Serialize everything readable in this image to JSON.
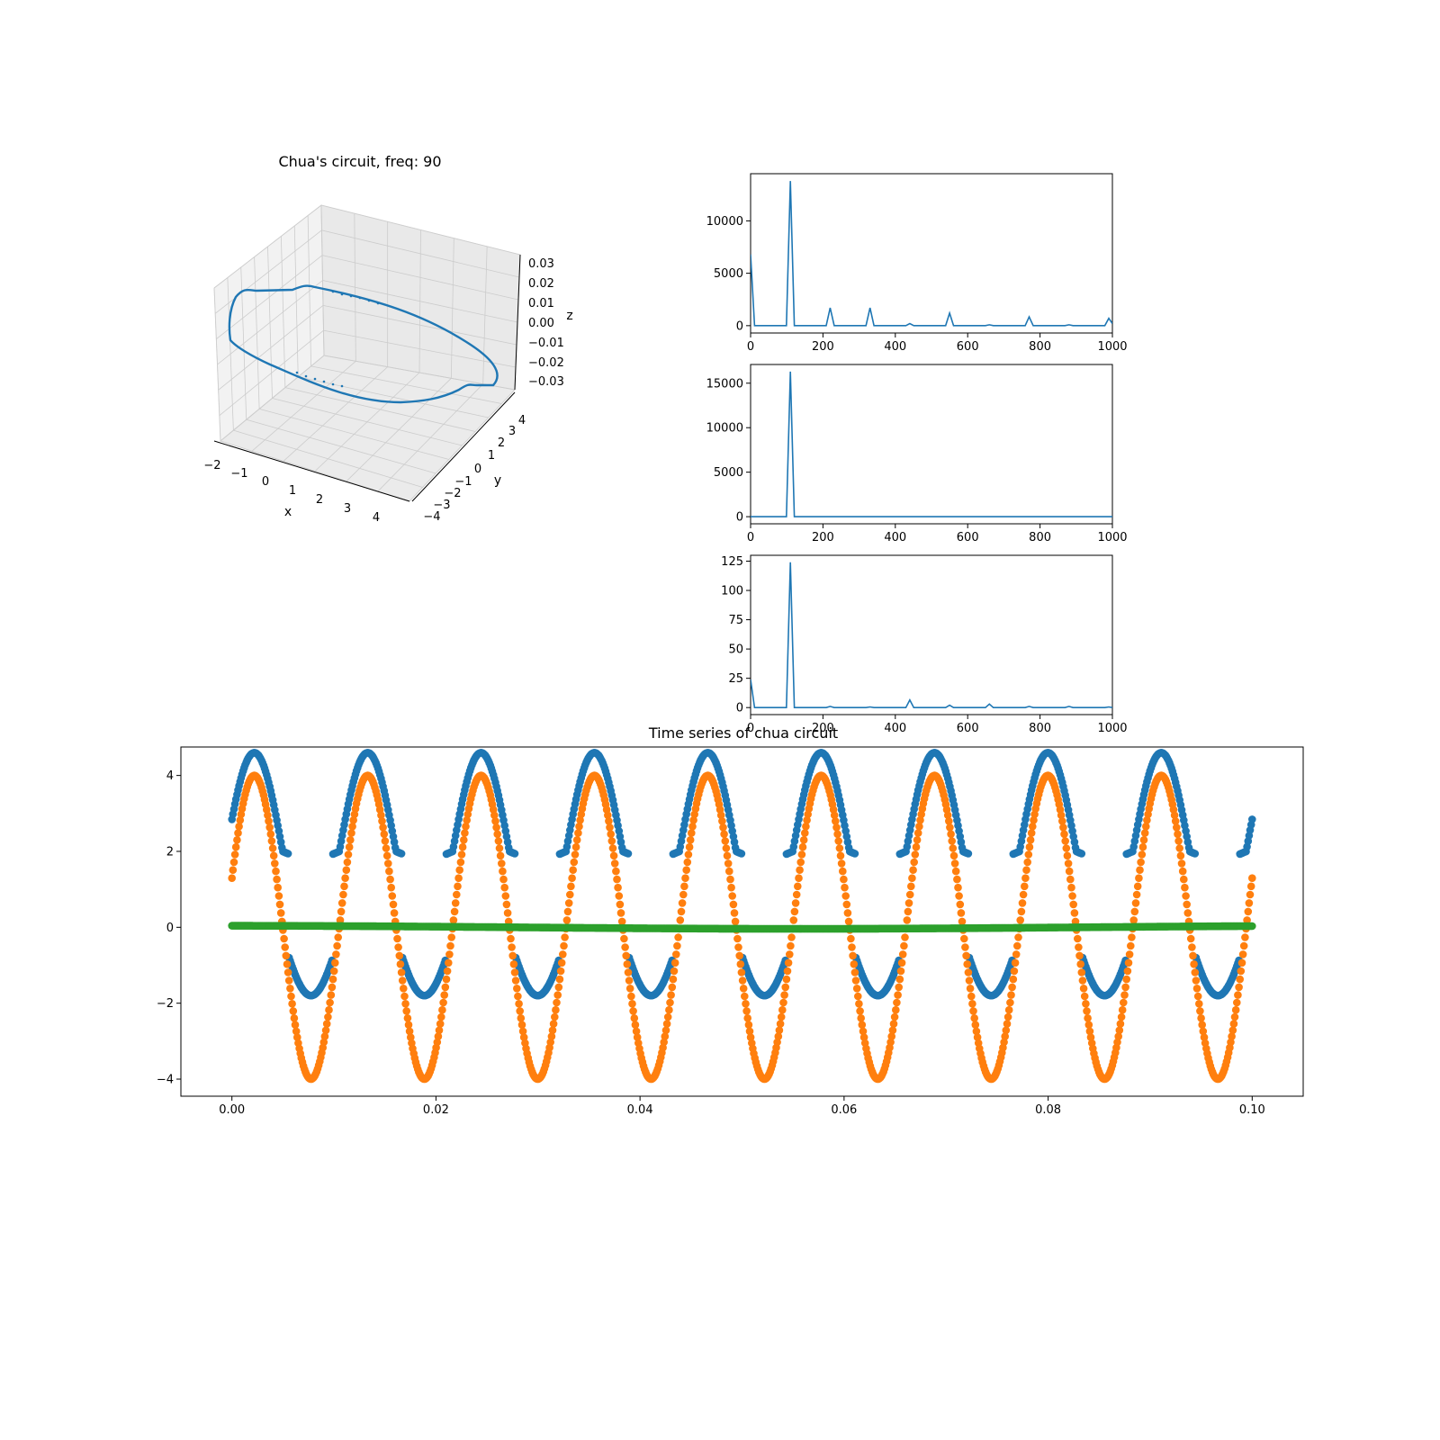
{
  "colors": {
    "c0": "#1f77b4",
    "c1": "#ff7f0e",
    "c2": "#2ca02c",
    "pane": "#f2f2f2",
    "grid": "#cccccc"
  },
  "chart_data": [
    {
      "id": "attractor3d",
      "type": "line3d",
      "title": "Chua's circuit, freq: 90",
      "xlabel": "x",
      "ylabel": "y",
      "zlabel": "z",
      "xlim": [
        -2,
        4.5
      ],
      "ylim": [
        -4.5,
        4.5
      ],
      "zlim": [
        -0.035,
        0.035
      ],
      "xticks": [
        "−2",
        "−1",
        "0",
        "1",
        "2",
        "3",
        "4"
      ],
      "yticks": [
        "−4",
        "−3",
        "−2",
        "−1",
        "0",
        "1",
        "2",
        "3",
        "4"
      ],
      "zticks": [
        "−0.03",
        "−0.02",
        "−0.01",
        "0.00",
        "0.01",
        "0.02",
        "0.03"
      ],
      "series": [
        {
          "color": "#1f77b4",
          "shape": "closed limit cycle, x approx −1.8 to 4.4, y approx −4 to 4, z approx −0.03 to 0.03"
        }
      ]
    },
    {
      "id": "fft1",
      "type": "line",
      "xlim": [
        0,
        1000
      ],
      "ylim": [
        -700,
        14500
      ],
      "xticks": [
        "0",
        "200",
        "400",
        "600",
        "800",
        "1000"
      ],
      "xtick_values": [
        0,
        200,
        400,
        600,
        800,
        1000
      ],
      "yticks": [
        "0",
        "5000",
        "10000"
      ],
      "ytick_values": [
        0,
        5000,
        10000
      ],
      "x": [
        0,
        11,
        99,
        110,
        121,
        209,
        220,
        231,
        319,
        330,
        341,
        429,
        440,
        451,
        539,
        550,
        561,
        649,
        660,
        671,
        759,
        770,
        781,
        869,
        880,
        891,
        979,
        990,
        1000
      ],
      "values": [
        6800,
        0,
        0,
        13800,
        0,
        0,
        1700,
        0,
        0,
        1700,
        0,
        0,
        200,
        0,
        0,
        1200,
        0,
        0,
        80,
        0,
        0,
        850,
        0,
        0,
        80,
        0,
        0,
        700,
        200
      ]
    },
    {
      "id": "fft2",
      "type": "line",
      "xlim": [
        0,
        1000
      ],
      "ylim": [
        -800,
        17100
      ],
      "xticks": [
        "0",
        "200",
        "400",
        "600",
        "800",
        "1000"
      ],
      "xtick_values": [
        0,
        200,
        400,
        600,
        800,
        1000
      ],
      "yticks": [
        "0",
        "5000",
        "10000",
        "15000"
      ],
      "ytick_values": [
        0,
        5000,
        10000,
        15000
      ],
      "x": [
        0,
        11,
        99,
        110,
        121,
        1000
      ],
      "values": [
        0,
        0,
        0,
        16300,
        0,
        0
      ]
    },
    {
      "id": "fft3",
      "type": "line",
      "xlim": [
        0,
        1000
      ],
      "ylim": [
        -6,
        130
      ],
      "xticks": [
        "0",
        "200",
        "400",
        "600",
        "800",
        "1000"
      ],
      "xtick_values": [
        0,
        200,
        400,
        600,
        800,
        1000
      ],
      "yticks": [
        "0",
        "25",
        "50",
        "75",
        "100",
        "125"
      ],
      "ytick_values": [
        0,
        25,
        50,
        75,
        100,
        125
      ],
      "x": [
        0,
        11,
        99,
        110,
        121,
        209,
        220,
        231,
        319,
        330,
        341,
        429,
        440,
        451,
        539,
        550,
        561,
        649,
        660,
        671,
        759,
        770,
        781,
        869,
        880,
        891,
        979,
        990,
        1000
      ],
      "values": [
        24,
        0,
        0,
        124,
        0,
        0,
        1,
        0,
        0,
        0.5,
        0,
        0,
        6.5,
        0,
        0,
        2,
        0,
        0,
        3,
        0,
        0,
        1,
        0,
        0,
        1,
        0,
        0,
        0.5,
        0
      ]
    },
    {
      "id": "timeseries",
      "type": "scatter",
      "title": "Time series of chua circuit",
      "xlim": [
        -0.005,
        0.105
      ],
      "ylim": [
        -4.45,
        4.75
      ],
      "xticks": [
        "0.00",
        "0.02",
        "0.04",
        "0.06",
        "0.08",
        "0.10"
      ],
      "xtick_values": [
        0,
        0.02,
        0.04,
        0.06,
        0.08,
        0.1
      ],
      "yticks": [
        "−4",
        "−2",
        "0",
        "2",
        "4"
      ],
      "ytick_values": [
        -4,
        -2,
        0,
        2,
        4
      ],
      "t_range": [
        0,
        0.1
      ],
      "n_points": 1000,
      "freq": 90,
      "series": [
        {
          "color": "#1f77b4",
          "description": "x: clipped wave, peaks approx 4.4, troughs approx −1.8, jumps near ±1.8",
          "peak": 4.4,
          "trough": -1.8
        },
        {
          "color": "#ff7f0e",
          "description": "y: sinusoid amplitude approx 4",
          "amplitude": 4.0
        },
        {
          "color": "#2ca02c",
          "description": "z: near zero",
          "amplitude": 0.04
        }
      ]
    }
  ]
}
